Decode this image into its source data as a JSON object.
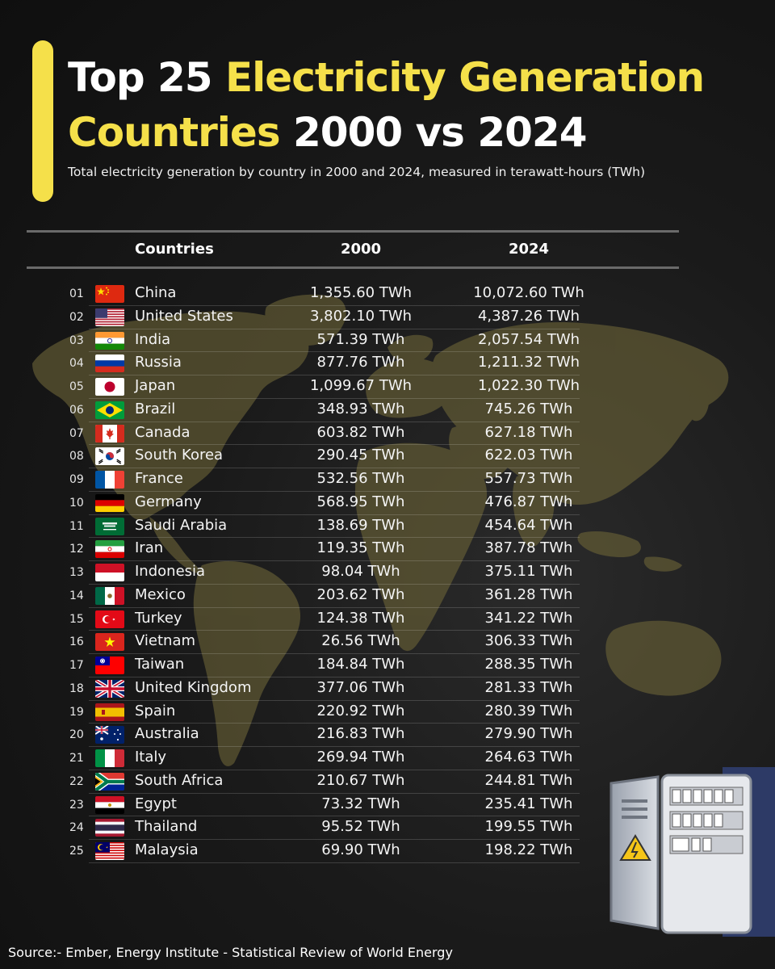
{
  "title": {
    "part1": "Top 25 ",
    "part2": "Electricity Generation",
    "part3": "Countries",
    "part4": " 2000 vs 2024"
  },
  "subtitle": "Total electricity generation by country in 2000 and 2024, measured in terawatt-hours (TWh)",
  "table": {
    "headers": {
      "countries": "Countries",
      "y2000": "2000",
      "y2024": "2024"
    }
  },
  "chart_data": {
    "type": "table",
    "columns": [
      "Countries",
      "2000",
      "2024"
    ],
    "rows": [
      {
        "rank": "01",
        "country": "China",
        "flag": "china-flag-icon",
        "v2000": 1355.6,
        "v2024": 10072.6,
        "label2000": "1,355.60 TWh",
        "label2024": "10,072.60 TWh"
      },
      {
        "rank": "02",
        "country": "United States",
        "flag": "united-states-flag-icon",
        "v2000": 3802.1,
        "v2024": 4387.26,
        "label2000": "3,802.10 TWh",
        "label2024": "4,387.26 TWh"
      },
      {
        "rank": "03",
        "country": "India",
        "flag": "india-flag-icon",
        "v2000": 571.39,
        "v2024": 2057.54,
        "label2000": "571.39 TWh",
        "label2024": "2,057.54 TWh"
      },
      {
        "rank": "04",
        "country": "Russia",
        "flag": "russia-flag-icon",
        "v2000": 877.76,
        "v2024": 1211.32,
        "label2000": "877.76 TWh",
        "label2024": "1,211.32 TWh"
      },
      {
        "rank": "05",
        "country": "Japan",
        "flag": "japan-flag-icon",
        "v2000": 1099.67,
        "v2024": 1022.3,
        "label2000": "1,099.67 TWh",
        "label2024": "1,022.30 TWh"
      },
      {
        "rank": "06",
        "country": "Brazil",
        "flag": "brazil-flag-icon",
        "v2000": 348.93,
        "v2024": 745.26,
        "label2000": "348.93 TWh",
        "label2024": "745.26 TWh"
      },
      {
        "rank": "07",
        "country": "Canada",
        "flag": "canada-flag-icon",
        "v2000": 603.82,
        "v2024": 627.18,
        "label2000": "603.82 TWh",
        "label2024": "627.18 TWh"
      },
      {
        "rank": "08",
        "country": "South Korea",
        "flag": "south-korea-flag-icon",
        "v2000": 290.45,
        "v2024": 622.03,
        "label2000": "290.45 TWh",
        "label2024": "622.03 TWh"
      },
      {
        "rank": "09",
        "country": "France",
        "flag": "france-flag-icon",
        "v2000": 532.56,
        "v2024": 557.73,
        "label2000": "532.56 TWh",
        "label2024": "557.73 TWh"
      },
      {
        "rank": "10",
        "country": "Germany",
        "flag": "germany-flag-icon",
        "v2000": 568.95,
        "v2024": 476.87,
        "label2000": "568.95 TWh",
        "label2024": "476.87 TWh"
      },
      {
        "rank": "11",
        "country": "Saudi Arabia",
        "flag": "saudi-arabia-flag-icon",
        "v2000": 138.69,
        "v2024": 454.64,
        "label2000": "138.69 TWh",
        "label2024": "454.64 TWh"
      },
      {
        "rank": "12",
        "country": "Iran",
        "flag": "iran-flag-icon",
        "v2000": 119.35,
        "v2024": 387.78,
        "label2000": "119.35 TWh",
        "label2024": "387.78 TWh"
      },
      {
        "rank": "13",
        "country": "Indonesia",
        "flag": "indonesia-flag-icon",
        "v2000": 98.04,
        "v2024": 375.11,
        "label2000": "98.04 TWh",
        "label2024": "375.11 TWh"
      },
      {
        "rank": "14",
        "country": "Mexico",
        "flag": "mexico-flag-icon",
        "v2000": 203.62,
        "v2024": 361.28,
        "label2000": "203.62 TWh",
        "label2024": "361.28 TWh"
      },
      {
        "rank": "15",
        "country": "Turkey",
        "flag": "turkey-flag-icon",
        "v2000": 124.38,
        "v2024": 341.22,
        "label2000": "124.38 TWh",
        "label2024": "341.22 TWh"
      },
      {
        "rank": "16",
        "country": "Vietnam",
        "flag": "vietnam-flag-icon",
        "v2000": 26.56,
        "v2024": 306.33,
        "label2000": "26.56 TWh",
        "label2024": "306.33 TWh"
      },
      {
        "rank": "17",
        "country": "Taiwan",
        "flag": "taiwan-flag-icon",
        "v2000": 184.84,
        "v2024": 288.35,
        "label2000": "184.84 TWh",
        "label2024": "288.35 TWh"
      },
      {
        "rank": "18",
        "country": "United Kingdom",
        "flag": "united-kingdom-flag-icon",
        "v2000": 377.06,
        "v2024": 281.33,
        "label2000": "377.06 TWh",
        "label2024": "281.33 TWh"
      },
      {
        "rank": "19",
        "country": "Spain",
        "flag": "spain-flag-icon",
        "v2000": 220.92,
        "v2024": 280.39,
        "label2000": "220.92 TWh",
        "label2024": "280.39 TWh"
      },
      {
        "rank": "20",
        "country": "Australia",
        "flag": "australia-flag-icon",
        "v2000": 216.83,
        "v2024": 279.9,
        "label2000": "216.83 TWh",
        "label2024": "279.90 TWh"
      },
      {
        "rank": "21",
        "country": "Italy",
        "flag": "italy-flag-icon",
        "v2000": 269.94,
        "v2024": 264.63,
        "label2000": "269.94 TWh",
        "label2024": "264.63 TWh"
      },
      {
        "rank": "22",
        "country": "South Africa",
        "flag": "south-africa-flag-icon",
        "v2000": 210.67,
        "v2024": 244.81,
        "label2000": "210.67 TWh",
        "label2024": "244.81 TWh"
      },
      {
        "rank": "23",
        "country": "Egypt",
        "flag": "egypt-flag-icon",
        "v2000": 73.32,
        "v2024": 235.41,
        "label2000": "73.32 TWh",
        "label2024": "235.41 TWh"
      },
      {
        "rank": "24",
        "country": "Thailand",
        "flag": "thailand-flag-icon",
        "v2000": 95.52,
        "v2024": 199.55,
        "label2000": "95.52 TWh",
        "label2024": "199.55 TWh"
      },
      {
        "rank": "25",
        "country": "Malaysia",
        "flag": "malaysia-flag-icon",
        "v2000": 69.9,
        "v2024": 198.22,
        "label2000": "69.90 TWh",
        "label2024": "198.22 TWh"
      }
    ]
  },
  "source": "Source:- Ember, Energy Institute - Statistical Review of World Energy",
  "colors": {
    "accent": "#f5e04a",
    "background": "#141414",
    "map": "#6b6337",
    "text": "#f2f2f2"
  },
  "decorations": {
    "background_map": "world-map-icon",
    "corner_art": "electrical-panel-icon"
  }
}
